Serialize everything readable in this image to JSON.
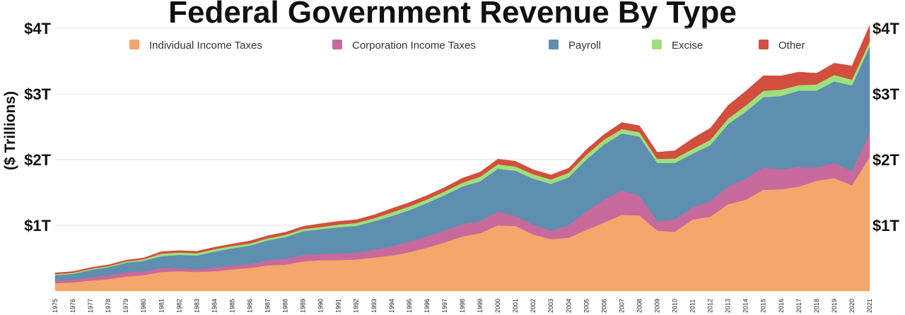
{
  "chart_data": {
    "type": "area",
    "stacked": true,
    "title": "Federal Government Revenue By Type",
    "ylabel": "($ Trillions)",
    "xlabel": "",
    "ylim": [
      0,
      4
    ],
    "yticks": [
      1,
      2,
      3,
      4
    ],
    "ytick_labels": [
      "$1T",
      "$2T",
      "$3T",
      "$4T"
    ],
    "grid": true,
    "legend_position": "top",
    "x": [
      "1975",
      "1976",
      "1977",
      "1978",
      "1979",
      "1980",
      "1981",
      "1982",
      "1983",
      "1984",
      "1985",
      "1986",
      "1987",
      "1988",
      "1989",
      "1990",
      "1991",
      "1992",
      "1993",
      "1994",
      "1995",
      "1996",
      "1997",
      "1998",
      "1999",
      "2000",
      "2001",
      "2002",
      "2003",
      "2004",
      "2005",
      "2006",
      "2007",
      "2008",
      "2009",
      "2010",
      "2011",
      "2012",
      "2013",
      "2014",
      "2015",
      "2016",
      "2017",
      "2018",
      "2019",
      "2020",
      "2021"
    ],
    "series": [
      {
        "name": "Individual Income Taxes",
        "color": "#f5a66b",
        "values": [
          0.12,
          0.13,
          0.16,
          0.18,
          0.22,
          0.24,
          0.29,
          0.3,
          0.29,
          0.3,
          0.33,
          0.35,
          0.39,
          0.4,
          0.45,
          0.47,
          0.47,
          0.48,
          0.51,
          0.54,
          0.59,
          0.66,
          0.74,
          0.83,
          0.88,
          1.0,
          0.99,
          0.86,
          0.79,
          0.81,
          0.93,
          1.04,
          1.16,
          1.15,
          0.92,
          0.9,
          1.09,
          1.13,
          1.32,
          1.39,
          1.54,
          1.55,
          1.59,
          1.68,
          1.72,
          1.61,
          2.04
        ]
      },
      {
        "name": "Corporation Income Taxes",
        "color": "#c76a9b",
        "values": [
          0.04,
          0.04,
          0.05,
          0.06,
          0.07,
          0.06,
          0.06,
          0.05,
          0.04,
          0.06,
          0.06,
          0.06,
          0.08,
          0.09,
          0.1,
          0.09,
          0.1,
          0.1,
          0.12,
          0.14,
          0.16,
          0.17,
          0.18,
          0.19,
          0.18,
          0.21,
          0.15,
          0.15,
          0.13,
          0.19,
          0.28,
          0.35,
          0.37,
          0.3,
          0.14,
          0.19,
          0.18,
          0.24,
          0.27,
          0.32,
          0.34,
          0.3,
          0.3,
          0.2,
          0.23,
          0.21,
          0.37
        ]
      },
      {
        "name": "Payroll",
        "color": "#5e8eb0",
        "values": [
          0.08,
          0.09,
          0.11,
          0.12,
          0.14,
          0.16,
          0.18,
          0.2,
          0.21,
          0.24,
          0.26,
          0.28,
          0.3,
          0.33,
          0.36,
          0.38,
          0.4,
          0.41,
          0.43,
          0.46,
          0.48,
          0.51,
          0.54,
          0.57,
          0.61,
          0.65,
          0.69,
          0.7,
          0.71,
          0.73,
          0.79,
          0.84,
          0.87,
          0.9,
          0.89,
          0.86,
          0.82,
          0.85,
          0.95,
          1.02,
          1.07,
          1.12,
          1.16,
          1.17,
          1.24,
          1.31,
          1.31
        ]
      },
      {
        "name": "Excise",
        "color": "#9edf7d",
        "values": [
          0.016,
          0.017,
          0.017,
          0.018,
          0.019,
          0.024,
          0.04,
          0.036,
          0.035,
          0.037,
          0.036,
          0.033,
          0.032,
          0.035,
          0.034,
          0.035,
          0.042,
          0.045,
          0.048,
          0.055,
          0.057,
          0.054,
          0.057,
          0.058,
          0.07,
          0.069,
          0.066,
          0.067,
          0.068,
          0.07,
          0.073,
          0.074,
          0.065,
          0.067,
          0.062,
          0.067,
          0.072,
          0.079,
          0.084,
          0.093,
          0.098,
          0.095,
          0.084,
          0.095,
          0.099,
          0.087,
          0.075
        ]
      },
      {
        "name": "Other",
        "color": "#d14f3c",
        "values": [
          0.02,
          0.02,
          0.02,
          0.02,
          0.02,
          0.02,
          0.03,
          0.03,
          0.03,
          0.03,
          0.03,
          0.04,
          0.04,
          0.04,
          0.04,
          0.05,
          0.05,
          0.05,
          0.05,
          0.06,
          0.06,
          0.06,
          0.06,
          0.07,
          0.07,
          0.08,
          0.08,
          0.07,
          0.07,
          0.07,
          0.08,
          0.08,
          0.1,
          0.1,
          0.1,
          0.12,
          0.16,
          0.18,
          0.2,
          0.22,
          0.23,
          0.21,
          0.2,
          0.17,
          0.18,
          0.21,
          0.25
        ]
      }
    ]
  }
}
